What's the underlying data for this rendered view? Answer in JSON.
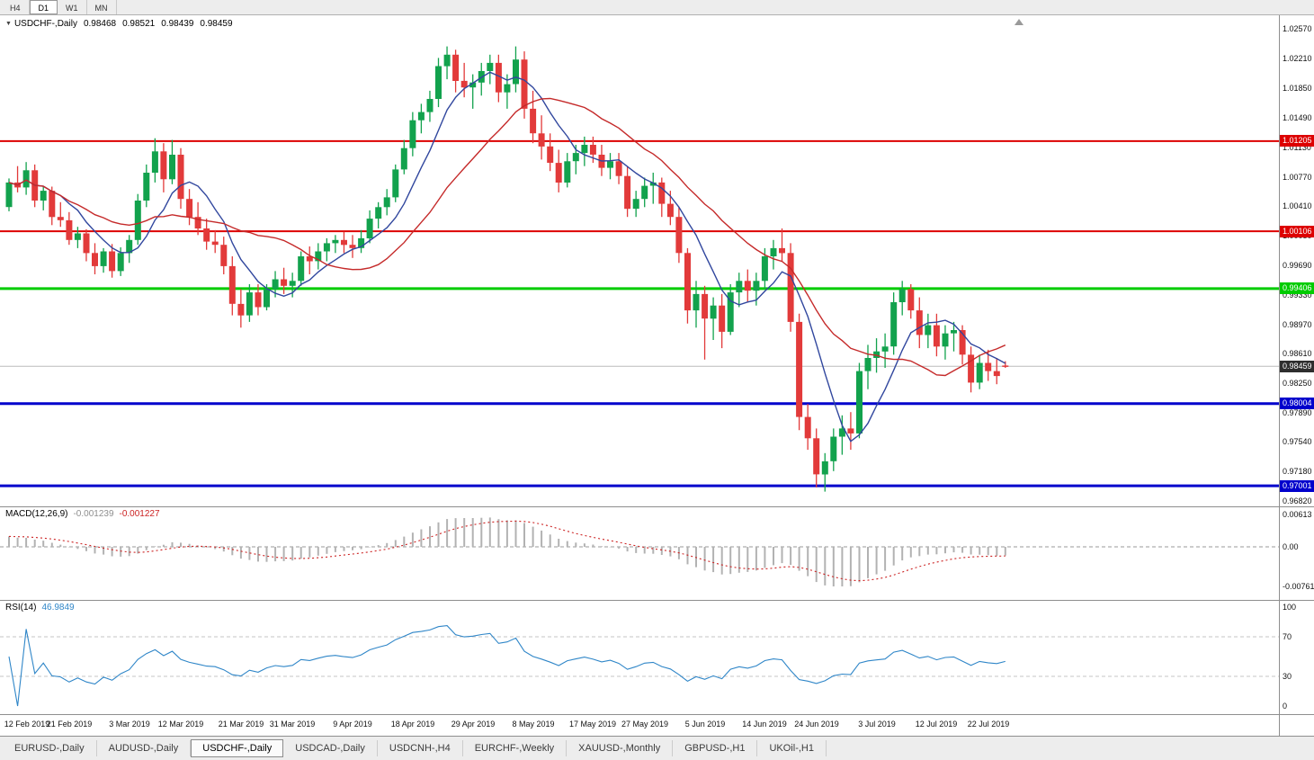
{
  "toolbar": {
    "timeframes": [
      {
        "label": "H4",
        "active": false
      },
      {
        "label": "D1",
        "active": true
      },
      {
        "label": "W1",
        "active": false
      },
      {
        "label": "MN",
        "active": false
      }
    ]
  },
  "chart": {
    "symbol_label": "USDCHF-,Daily",
    "open": "0.98468",
    "high": "0.98521",
    "low": "0.98439",
    "close": "0.98459"
  },
  "chart_data": {
    "type": "candlestick",
    "title": "USDCHF-,Daily",
    "ylim": [
      0.9675,
      1.0274
    ],
    "grid": false,
    "y_ticks": [
      "1.02570",
      "1.02210",
      "1.01850",
      "1.01490",
      "1.01130",
      "1.00770",
      "1.00410",
      "1.00050",
      "0.99690",
      "0.99330",
      "0.98970",
      "0.98610",
      "0.98250",
      "0.97890",
      "0.97540",
      "0.97180",
      "0.96820"
    ],
    "hlines": [
      {
        "value": 1.01205,
        "label": "1.01205",
        "color": "#dd0000",
        "width": 2
      },
      {
        "value": 1.00106,
        "label": "1.00106",
        "color": "#dd0000",
        "width": 2
      },
      {
        "value": 0.99406,
        "label": "0.99406",
        "color": "#00cc00",
        "width": 3
      },
      {
        "value": 0.98004,
        "label": "0.98004",
        "color": "#0000cc",
        "width": 3
      },
      {
        "value": 0.97001,
        "label": "0.97001",
        "color": "#0000cc",
        "width": 3
      }
    ],
    "current_price": {
      "value": 0.98459,
      "label": "0.98459",
      "color": "#2e2e2e"
    },
    "x_labels": [
      {
        "bar": 0,
        "label": "12 Feb 2019"
      },
      {
        "bar": 7,
        "label": "21 Feb 2019"
      },
      {
        "bar": 14,
        "label": "3 Mar 2019"
      },
      {
        "bar": 20,
        "label": "12 Mar 2019"
      },
      {
        "bar": 27,
        "label": "21 Mar 2019"
      },
      {
        "bar": 33,
        "label": "31 Mar 2019"
      },
      {
        "bar": 40,
        "label": "9 Apr 2019"
      },
      {
        "bar": 47,
        "label": "18 Apr 2019"
      },
      {
        "bar": 54,
        "label": "29 Apr 2019"
      },
      {
        "bar": 61,
        "label": "8 May 2019"
      },
      {
        "bar": 68,
        "label": "17 May 2019"
      },
      {
        "bar": 74,
        "label": "27 May 2019"
      },
      {
        "bar": 81,
        "label": "5 Jun 2019"
      },
      {
        "bar": 88,
        "label": "14 Jun 2019"
      },
      {
        "bar": 94,
        "label": "24 Jun 2019"
      },
      {
        "bar": 101,
        "label": "3 Jul 2019"
      },
      {
        "bar": 108,
        "label": "12 Jul 2019"
      },
      {
        "bar": 114,
        "label": "22 Jul 2019"
      }
    ],
    "colors": {
      "up": "#12a24d",
      "down": "#e23a3a",
      "ma_fast": "#31479e",
      "ma_slow": "#c52a2a",
      "bid_line": "#bcbcbc"
    },
    "moving_averages": [
      {
        "period": 7,
        "color_key": "ma_fast"
      },
      {
        "period": 18,
        "color_key": "ma_slow"
      }
    ],
    "candles": [
      [
        1.004,
        1.0075,
        1.0035,
        1.007
      ],
      [
        1.007,
        1.009,
        1.0058,
        1.0064
      ],
      [
        1.0064,
        1.0095,
        1.0055,
        1.0085
      ],
      [
        1.0085,
        1.0092,
        1.004,
        1.0048
      ],
      [
        1.0048,
        1.0066,
        1.0036,
        1.006
      ],
      [
        1.006,
        1.0065,
        1.0018,
        1.0028
      ],
      [
        1.0028,
        1.0046,
        1.0016,
        1.0024
      ],
      [
        1.0024,
        1.0034,
        0.9994,
        1.0
      ],
      [
        1.0,
        1.0016,
        0.999,
        1.0008
      ],
      [
        1.0008,
        1.0013,
        0.9974,
        0.9984
      ],
      [
        0.9984,
        0.9996,
        0.9958,
        0.9968
      ],
      [
        0.9968,
        0.999,
        0.996,
        0.9986
      ],
      [
        0.9986,
        0.9995,
        0.9954,
        0.9962
      ],
      [
        0.9962,
        0.9991,
        0.9956,
        0.9984
      ],
      [
        0.9984,
        1.0006,
        0.9972,
        1.0
      ],
      [
        1.0,
        1.0056,
        0.9994,
        1.0048
      ],
      [
        1.0048,
        1.0092,
        1.004,
        1.0082
      ],
      [
        1.0082,
        1.0124,
        1.007,
        1.0108
      ],
      [
        1.0108,
        1.0118,
        1.0058,
        1.0074
      ],
      [
        1.0074,
        1.0122,
        1.0068,
        1.0104
      ],
      [
        1.0104,
        1.0112,
        1.0038,
        1.005
      ],
      [
        1.005,
        1.0062,
        1.0018,
        1.0028
      ],
      [
        1.0028,
        1.0046,
        1.0006,
        1.0014
      ],
      [
        1.0014,
        1.0026,
        0.9988,
        0.9998
      ],
      [
        0.9998,
        1.0012,
        0.9984,
        0.9994
      ],
      [
        0.9994,
        1.0004,
        0.9958,
        0.9968
      ],
      [
        0.9968,
        0.998,
        0.9908,
        0.9922
      ],
      [
        0.9922,
        0.994,
        0.9893,
        0.9908
      ],
      [
        0.9908,
        0.9946,
        0.99,
        0.9936
      ],
      [
        0.9936,
        0.9946,
        0.9908,
        0.9918
      ],
      [
        0.9918,
        0.9946,
        0.9914,
        0.994
      ],
      [
        0.994,
        0.9962,
        0.993,
        0.9952
      ],
      [
        0.9952,
        0.9966,
        0.9934,
        0.9944
      ],
      [
        0.9944,
        0.996,
        0.993,
        0.995
      ],
      [
        0.995,
        0.9986,
        0.9944,
        0.998
      ],
      [
        0.998,
        0.9992,
        0.9958,
        0.9974
      ],
      [
        0.9974,
        0.9996,
        0.9964,
        0.9986
      ],
      [
        0.9986,
        1.0002,
        0.9974,
        0.9996
      ],
      [
        0.9996,
        1.0006,
        0.9984,
        1.0
      ],
      [
        1.0,
        1.001,
        0.9984,
        0.9994
      ],
      [
        0.9994,
        1.0006,
        0.9978,
        0.999
      ],
      [
        0.999,
        1.0012,
        0.9984,
        1.0002
      ],
      [
        1.0002,
        1.0036,
        0.9996,
        1.0026
      ],
      [
        1.0026,
        1.0046,
        1.0014,
        1.004
      ],
      [
        1.004,
        1.0062,
        1.003,
        1.0052
      ],
      [
        1.0052,
        1.0092,
        1.0046,
        1.0086
      ],
      [
        1.0086,
        1.0122,
        1.008,
        1.0112
      ],
      [
        1.0112,
        1.0156,
        1.0102,
        1.0146
      ],
      [
        1.0146,
        1.0166,
        1.013,
        1.0156
      ],
      [
        1.0156,
        1.0182,
        1.0144,
        1.0172
      ],
      [
        1.0172,
        1.0222,
        1.0162,
        1.0212
      ],
      [
        1.0212,
        1.0236,
        1.0196,
        1.0226
      ],
      [
        1.0226,
        1.0232,
        1.018,
        1.0194
      ],
      [
        1.0194,
        1.0216,
        1.0174,
        1.0186
      ],
      [
        1.0186,
        1.0202,
        1.016,
        1.0192
      ],
      [
        1.0192,
        1.0216,
        1.0176,
        1.0206
      ],
      [
        1.0206,
        1.0226,
        1.019,
        1.0216
      ],
      [
        1.0216,
        1.0226,
        1.0168,
        1.018
      ],
      [
        1.018,
        1.0202,
        1.016,
        1.019
      ],
      [
        1.019,
        1.0236,
        1.018,
        1.022
      ],
      [
        1.022,
        1.023,
        1.0148,
        1.016
      ],
      [
        1.016,
        1.0182,
        1.0118,
        1.013
      ],
      [
        1.013,
        1.0152,
        1.0098,
        1.0114
      ],
      [
        1.0114,
        1.013,
        1.0084,
        1.0094
      ],
      [
        1.0094,
        1.011,
        1.0058,
        1.007
      ],
      [
        1.007,
        1.0106,
        1.0064,
        1.0096
      ],
      [
        1.0096,
        1.0116,
        1.008,
        1.0106
      ],
      [
        1.0106,
        1.0126,
        1.009,
        1.0116
      ],
      [
        1.0116,
        1.0126,
        1.0094,
        1.0104
      ],
      [
        1.0104,
        1.0116,
        1.0078,
        1.0088
      ],
      [
        1.0088,
        1.0106,
        1.0074,
        1.0096
      ],
      [
        1.0096,
        1.0106,
        1.0068,
        1.0078
      ],
      [
        1.0078,
        1.009,
        1.0028,
        1.0038
      ],
      [
        1.0038,
        1.006,
        1.0028,
        1.005
      ],
      [
        1.005,
        1.0076,
        1.004,
        1.0066
      ],
      [
        1.0066,
        1.0082,
        1.0044,
        1.007
      ],
      [
        1.007,
        1.0076,
        1.0028,
        1.0044
      ],
      [
        1.0044,
        1.006,
        1.0018,
        1.0028
      ],
      [
        1.0028,
        1.004,
        0.9972,
        0.9984
      ],
      [
        0.9984,
        0.999,
        0.9898,
        0.9914
      ],
      [
        0.9914,
        0.995,
        0.9893,
        0.9934
      ],
      [
        0.9934,
        0.9944,
        0.9854,
        0.9904
      ],
      [
        0.9904,
        0.993,
        0.9878,
        0.992
      ],
      [
        0.992,
        0.9934,
        0.9868,
        0.9888
      ],
      [
        0.9888,
        0.9946,
        0.9884,
        0.9936
      ],
      [
        0.9936,
        0.996,
        0.9918,
        0.995
      ],
      [
        0.995,
        0.9964,
        0.9924,
        0.9938
      ],
      [
        0.9938,
        0.996,
        0.992,
        0.995
      ],
      [
        0.995,
        0.999,
        0.994,
        0.998
      ],
      [
        0.998,
        1.0,
        0.9964,
        0.999
      ],
      [
        0.999,
        1.0014,
        0.9974,
        0.9984
      ],
      [
        0.9984,
        0.9996,
        0.9888,
        0.99
      ],
      [
        0.99,
        0.991,
        0.9768,
        0.9784
      ],
      [
        0.9784,
        0.98,
        0.9744,
        0.9758
      ],
      [
        0.9758,
        0.977,
        0.9698,
        0.9714
      ],
      [
        0.9714,
        0.974,
        0.9693,
        0.973
      ],
      [
        0.973,
        0.977,
        0.9718,
        0.976
      ],
      [
        0.976,
        0.9786,
        0.9738,
        0.977
      ],
      [
        0.977,
        0.979,
        0.9744,
        0.9764
      ],
      [
        0.9764,
        0.985,
        0.9758,
        0.984
      ],
      [
        0.984,
        0.9872,
        0.9818,
        0.9856
      ],
      [
        0.9856,
        0.988,
        0.9838,
        0.9864
      ],
      [
        0.9864,
        0.9886,
        0.9844,
        0.987
      ],
      [
        0.987,
        0.9936,
        0.986,
        0.9924
      ],
      [
        0.9924,
        0.995,
        0.9908,
        0.994
      ],
      [
        0.994,
        0.9946,
        0.9904,
        0.9914
      ],
      [
        0.9914,
        0.993,
        0.9868,
        0.9884
      ],
      [
        0.9884,
        0.991,
        0.9868,
        0.9896
      ],
      [
        0.9896,
        0.991,
        0.9858,
        0.987
      ],
      [
        0.987,
        0.9896,
        0.9854,
        0.9886
      ],
      [
        0.9886,
        0.99,
        0.9864,
        0.989
      ],
      [
        0.989,
        0.9896,
        0.9848,
        0.986
      ],
      [
        0.986,
        0.987,
        0.9814,
        0.9826
      ],
      [
        0.9826,
        0.986,
        0.9818,
        0.985
      ],
      [
        0.985,
        0.9866,
        0.9828,
        0.984
      ],
      [
        0.984,
        0.9856,
        0.9824,
        0.9834
      ],
      [
        0.98468,
        0.98521,
        0.98439,
        0.98459
      ]
    ]
  },
  "macd": {
    "params_label": "MACD(12,26,9)",
    "value_main": "-0.001239",
    "value_signal": "-0.001227",
    "fast": 12,
    "slow": 26,
    "signal": 9,
    "y_ticks": [
      {
        "label": "0.00613",
        "value": 0.00613
      },
      {
        "label": "0.00",
        "value": 0
      },
      {
        "label": "-0.00761",
        "value": -0.00761
      }
    ],
    "colors": {
      "histogram": "#b2b2b2",
      "signal": "#cc2222",
      "zero_line": "#9a9a9a"
    }
  },
  "rsi": {
    "params_label": "RSI(14)",
    "value": "46.9849",
    "period": 14,
    "levels": [
      {
        "label": "100",
        "value": 100,
        "line": false
      },
      {
        "label": "70",
        "value": 70,
        "line": true
      },
      {
        "label": "30",
        "value": 30,
        "line": true
      },
      {
        "label": "0",
        "value": 0,
        "line": false
      }
    ],
    "color": "#2f86c8"
  },
  "tabs": [
    {
      "label": "EURUSD-,Daily",
      "active": false
    },
    {
      "label": "AUDUSD-,Daily",
      "active": false
    },
    {
      "label": "USDCHF-,Daily",
      "active": true
    },
    {
      "label": "USDCAD-,Daily",
      "active": false
    },
    {
      "label": "USDCNH-,H4",
      "active": false
    },
    {
      "label": "EURCHF-,Weekly",
      "active": false
    },
    {
      "label": "XAUUSD-,Monthly",
      "active": false
    },
    {
      "label": "GBPUSD-,H1",
      "active": false
    },
    {
      "label": "UKOil-,H1",
      "active": false
    }
  ]
}
